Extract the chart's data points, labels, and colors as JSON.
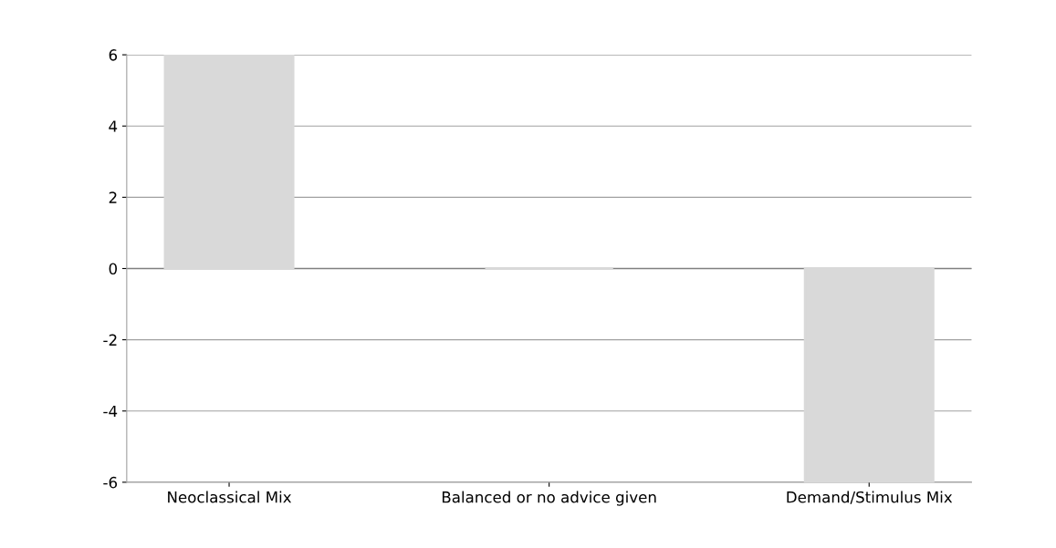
{
  "chart_data": {
    "type": "bar",
    "categories": [
      "Neoclassical Mix",
      "Balanced or no advice given",
      "Demand/Stimulus Mix"
    ],
    "values": [
      6,
      0,
      -6
    ],
    "color": "#d9d9d9",
    "ylim": [
      -6,
      6
    ],
    "yticks": [
      -6,
      -4,
      -2,
      0,
      2,
      4,
      6
    ],
    "grid": "y"
  }
}
